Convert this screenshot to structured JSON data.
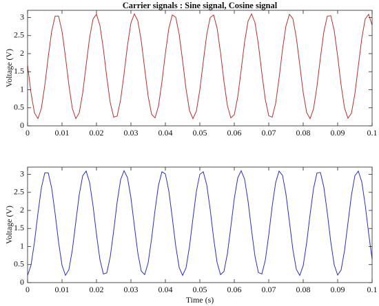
{
  "chart_data": [
    {
      "type": "line",
      "title": "Carrier signals : Sine signal, Cosine signal",
      "ylabel": "Voltage (V)",
      "x": [
        0,
        0.001,
        0.002,
        0.003,
        0.004,
        0.005,
        0.006,
        0.007,
        0.008,
        0.009,
        0.01,
        0.011,
        0.012,
        0.013,
        0.014,
        0.015,
        0.016,
        0.017,
        0.018,
        0.019,
        0.02,
        0.021,
        0.022,
        0.023,
        0.024,
        0.025,
        0.026,
        0.027,
        0.028,
        0.029,
        0.03,
        0.031,
        0.032,
        0.033,
        0.034,
        0.035,
        0.036,
        0.037,
        0.038,
        0.039,
        0.04,
        0.041,
        0.042,
        0.043,
        0.044,
        0.045,
        0.046,
        0.047,
        0.048,
        0.049,
        0.05,
        0.051,
        0.052,
        0.053,
        0.054,
        0.055,
        0.056,
        0.057,
        0.058,
        0.059,
        0.06,
        0.061,
        0.062,
        0.063,
        0.064,
        0.065,
        0.066,
        0.067,
        0.068,
        0.069,
        0.07,
        0.071,
        0.072,
        0.073,
        0.074,
        0.075,
        0.076,
        0.077,
        0.078,
        0.079,
        0.08,
        0.081,
        0.082,
        0.083,
        0.084,
        0.085,
        0.086,
        0.087,
        0.088,
        0.089,
        0.09,
        0.091,
        0.092,
        0.093,
        0.094,
        0.095,
        0.096,
        0.097,
        0.098,
        0.099,
        0.1
      ],
      "values": [
        1.68,
        0.91,
        0.36,
        0.2,
        0.48,
        1.12,
        1.91,
        2.62,
        3.04,
        3.04,
        2.62,
        1.91,
        1.12,
        0.48,
        0.2,
        0.36,
        0.91,
        1.68,
        2.44,
        2.96,
        3.09,
        2.78,
        2.13,
        1.34,
        0.64,
        0.24,
        0.27,
        0.72,
        1.44,
        2.23,
        2.85,
        3.1,
        2.91,
        2.35,
        1.57,
        0.82,
        0.32,
        0.22,
        0.55,
        1.22,
        2.01,
        2.7,
        3.07,
        3.01,
        2.54,
        1.8,
        1.02,
        0.42,
        0.2,
        0.41,
        1.0,
        1.78,
        2.53,
        3.0,
        3.07,
        2.71,
        2.03,
        1.23,
        0.56,
        0.22,
        0.31,
        0.8,
        1.55,
        2.33,
        2.9,
        3.1,
        2.86,
        2.25,
        1.46,
        0.73,
        0.28,
        0.24,
        0.62,
        1.32,
        2.12,
        2.77,
        3.09,
        2.97,
        2.45,
        1.69,
        0.92,
        0.37,
        0.2,
        0.47,
        1.1,
        1.89,
        2.61,
        3.04,
        3.05,
        2.64,
        1.93,
        1.13,
        0.49,
        0.21,
        0.35,
        0.89,
        1.66,
        2.42,
        2.96,
        3.09,
        2.79
      ],
      "color": "#b5302a",
      "xlim": [
        0,
        0.1
      ],
      "xticks": [
        0,
        0.01,
        0.02,
        0.03,
        0.04,
        0.05,
        0.06,
        0.07,
        0.08,
        0.09,
        0.1
      ],
      "ylim": [
        0,
        3.2
      ],
      "yticks": [
        0,
        0.5,
        1,
        1.5,
        2,
        2.5,
        3
      ]
    },
    {
      "type": "line",
      "ylabel": "Voltage (V)",
      "xlabel": "Time (s)",
      "x": [
        0,
        0.001,
        0.002,
        0.003,
        0.004,
        0.005,
        0.006,
        0.007,
        0.008,
        0.009,
        0.01,
        0.011,
        0.012,
        0.013,
        0.014,
        0.015,
        0.016,
        0.017,
        0.018,
        0.019,
        0.02,
        0.021,
        0.022,
        0.023,
        0.024,
        0.025,
        0.026,
        0.027,
        0.028,
        0.029,
        0.03,
        0.031,
        0.032,
        0.033,
        0.034,
        0.035,
        0.036,
        0.037,
        0.038,
        0.039,
        0.04,
        0.041,
        0.042,
        0.043,
        0.044,
        0.045,
        0.046,
        0.047,
        0.048,
        0.049,
        0.05,
        0.051,
        0.052,
        0.053,
        0.054,
        0.055,
        0.056,
        0.057,
        0.058,
        0.059,
        0.06,
        0.061,
        0.062,
        0.063,
        0.064,
        0.065,
        0.066,
        0.067,
        0.068,
        0.069,
        0.07,
        0.071,
        0.072,
        0.073,
        0.074,
        0.075,
        0.076,
        0.077,
        0.078,
        0.079,
        0.08,
        0.081,
        0.082,
        0.083,
        0.084,
        0.085,
        0.086,
        0.087,
        0.088,
        0.089,
        0.09,
        0.091,
        0.092,
        0.093,
        0.094,
        0.095,
        0.096,
        0.097,
        0.098,
        0.099,
        0.1
      ],
      "values": [
        0.2,
        0.48,
        1.12,
        1.91,
        2.62,
        3.04,
        3.04,
        2.62,
        1.91,
        1.12,
        0.48,
        0.2,
        0.36,
        0.91,
        1.68,
        2.44,
        2.96,
        3.09,
        2.78,
        2.13,
        1.34,
        0.64,
        0.24,
        0.27,
        0.72,
        1.44,
        2.23,
        2.85,
        3.1,
        2.91,
        2.35,
        1.57,
        0.82,
        0.32,
        0.22,
        0.55,
        1.22,
        2.01,
        2.7,
        3.07,
        3.01,
        2.54,
        1.8,
        1.02,
        0.42,
        0.2,
        0.41,
        1.0,
        1.78,
        2.53,
        3.0,
        3.07,
        2.71,
        2.03,
        1.23,
        0.56,
        0.22,
        0.31,
        0.8,
        1.55,
        2.33,
        2.9,
        3.1,
        2.86,
        2.25,
        1.46,
        0.73,
        0.28,
        0.24,
        0.62,
        1.32,
        2.12,
        2.77,
        3.09,
        2.97,
        2.45,
        1.69,
        0.92,
        0.37,
        0.2,
        0.47,
        1.1,
        1.89,
        2.61,
        3.04,
        3.05,
        2.64,
        1.93,
        1.13,
        0.49,
        0.21,
        0.35,
        0.89,
        1.66,
        2.42,
        2.96,
        3.09,
        2.79,
        2.15,
        1.36,
        0.65
      ],
      "color": "#2b2bc4",
      "xlim": [
        0,
        0.1
      ],
      "xticks": [
        0,
        0.01,
        0.02,
        0.03,
        0.04,
        0.05,
        0.06,
        0.07,
        0.08,
        0.09,
        0.1
      ],
      "ylim": [
        0,
        3.2
      ],
      "yticks": [
        0,
        0.5,
        1,
        1.5,
        2,
        2.5,
        3
      ]
    }
  ]
}
